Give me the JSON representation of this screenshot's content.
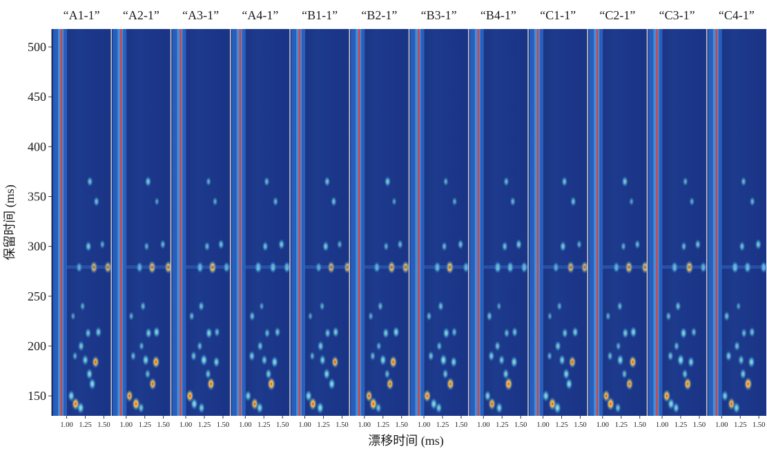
{
  "chart_data": {
    "type": "heatmap",
    "title": "",
    "xlabel": "漂移时间 (ms)",
    "ylabel": "保留时间 (ms)",
    "samples": [
      "“A1-1”",
      "“A2-1”",
      "“A3-1”",
      "“A4-1”",
      "“B1-1”",
      "“B2-1”",
      "“B3-1”",
      "“B4-1”",
      "“C1-1”",
      "“C2-1”",
      "“C3-1”",
      "“C4-1”"
    ],
    "x_ticks": [
      1.0,
      1.25,
      1.5
    ],
    "x_tick_labels": [
      "1.00",
      "1.25",
      "1.50"
    ],
    "xlim": [
      0.8,
      1.6
    ],
    "y_ticks": [
      150,
      200,
      250,
      300,
      350,
      400,
      450,
      500
    ],
    "ylim": [
      130,
      518
    ],
    "reactant_ion_peak_drift_ms": 0.93,
    "colors": {
      "background": "#1d3a8c",
      "reactant_band": "#2a66c8",
      "rip_line": "#e63a2b",
      "separator": "#c8c8c8"
    },
    "signal_peaks": [
      {
        "drift": 1.18,
        "rt": 279,
        "intensity": 0.7
      },
      {
        "drift": 1.36,
        "rt": 279,
        "intensity": 0.9
      },
      {
        "drift": 1.56,
        "rt": 279,
        "intensity": 0.8
      },
      {
        "drift": 1.28,
        "rt": 300,
        "intensity": 0.5
      },
      {
        "drift": 1.48,
        "rt": 302,
        "intensity": 0.5
      },
      {
        "drift": 1.3,
        "rt": 213,
        "intensity": 0.6
      },
      {
        "drift": 1.42,
        "rt": 214,
        "intensity": 0.6
      },
      {
        "drift": 1.2,
        "rt": 200,
        "intensity": 0.5
      },
      {
        "drift": 1.1,
        "rt": 190,
        "intensity": 0.5
      },
      {
        "drift": 1.25,
        "rt": 186,
        "intensity": 0.7
      },
      {
        "drift": 1.4,
        "rt": 184,
        "intensity": 0.8
      },
      {
        "drift": 1.3,
        "rt": 172,
        "intensity": 0.6
      },
      {
        "drift": 1.35,
        "rt": 162,
        "intensity": 0.9
      },
      {
        "drift": 1.05,
        "rt": 150,
        "intensity": 0.8
      },
      {
        "drift": 1.12,
        "rt": 142,
        "intensity": 0.9
      },
      {
        "drift": 1.2,
        "rt": 138,
        "intensity": 0.7
      },
      {
        "drift": 1.08,
        "rt": 230,
        "intensity": 0.4
      },
      {
        "drift": 1.22,
        "rt": 240,
        "intensity": 0.4
      },
      {
        "drift": 1.3,
        "rt": 365,
        "intensity": 0.5
      },
      {
        "drift": 1.4,
        "rt": 345,
        "intensity": 0.4
      }
    ]
  }
}
